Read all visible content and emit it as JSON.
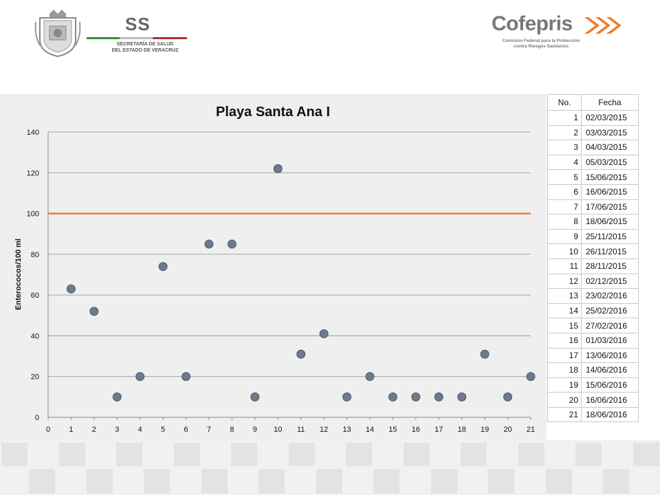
{
  "header": {
    "ss_mark": "SS",
    "ss_text_line1": "SECRETARÍA DE SALUD",
    "ss_text_line2": "DEL ESTADO DE VERACRUZ",
    "cofepris_name": "Cofepris",
    "cofepris_sub_line1": "Comisión Federal para la Protección",
    "cofepris_sub_line2": "contra Riesgos Sanitarios"
  },
  "colors": {
    "marker": "#6d7a8c",
    "marker_stroke": "#4f5a68",
    "limit_line": "#ed7d31",
    "grid": "#8c8c8c",
    "chart_bg": "#efefef"
  },
  "chart_data": {
    "type": "scatter",
    "title": "Playa Santa Ana I",
    "xlabel": "",
    "ylabel": "Enterococos/100 ml",
    "xlim": [
      0,
      21
    ],
    "ylim": [
      0,
      140
    ],
    "x_ticks": [
      0,
      1,
      2,
      3,
      4,
      5,
      6,
      7,
      8,
      9,
      10,
      11,
      12,
      13,
      14,
      15,
      16,
      17,
      18,
      19,
      20,
      21
    ],
    "y_ticks": [
      0,
      20,
      40,
      60,
      80,
      100,
      120,
      140
    ],
    "grid": "horizontal",
    "legend": "none",
    "series": [
      {
        "x": [
          1,
          2,
          3,
          4,
          5,
          6,
          7,
          8,
          9,
          10,
          11,
          12,
          13,
          14,
          15,
          16,
          17,
          18,
          19,
          20,
          21
        ],
        "y": [
          63,
          52,
          10,
          20,
          74,
          20,
          85,
          85,
          10,
          122,
          31,
          41,
          10,
          20,
          10,
          10,
          10,
          10,
          31,
          10,
          20
        ]
      }
    ],
    "limit_line": {
      "y": 100,
      "x_start": 0,
      "x_end": 21
    }
  },
  "table": {
    "headers": [
      "No.",
      "Fecha"
    ],
    "rows": [
      [
        "1",
        "02/03/2015"
      ],
      [
        "2",
        "03/03/2015"
      ],
      [
        "3",
        "04/03/2015"
      ],
      [
        "4",
        "05/03/2015"
      ],
      [
        "5",
        "15/06/2015"
      ],
      [
        "6",
        "16/06/2015"
      ],
      [
        "7",
        "17/06/2015"
      ],
      [
        "8",
        "18/06/2015"
      ],
      [
        "9",
        "25/11/2015"
      ],
      [
        "10",
        "26/11/2015"
      ],
      [
        "11",
        "28/11/2015"
      ],
      [
        "12",
        "02/12/2015"
      ],
      [
        "13",
        "23/02/2016"
      ],
      [
        "14",
        "25/02/2016"
      ],
      [
        "15",
        "27/02/2016"
      ],
      [
        "16",
        "01/03/2016"
      ],
      [
        "17",
        "13/06/2016"
      ],
      [
        "18",
        "14/06/2016"
      ],
      [
        "19",
        "15/06/2016"
      ],
      [
        "20",
        "16/06/2016"
      ],
      [
        "21",
        "18/06/2016"
      ]
    ]
  }
}
